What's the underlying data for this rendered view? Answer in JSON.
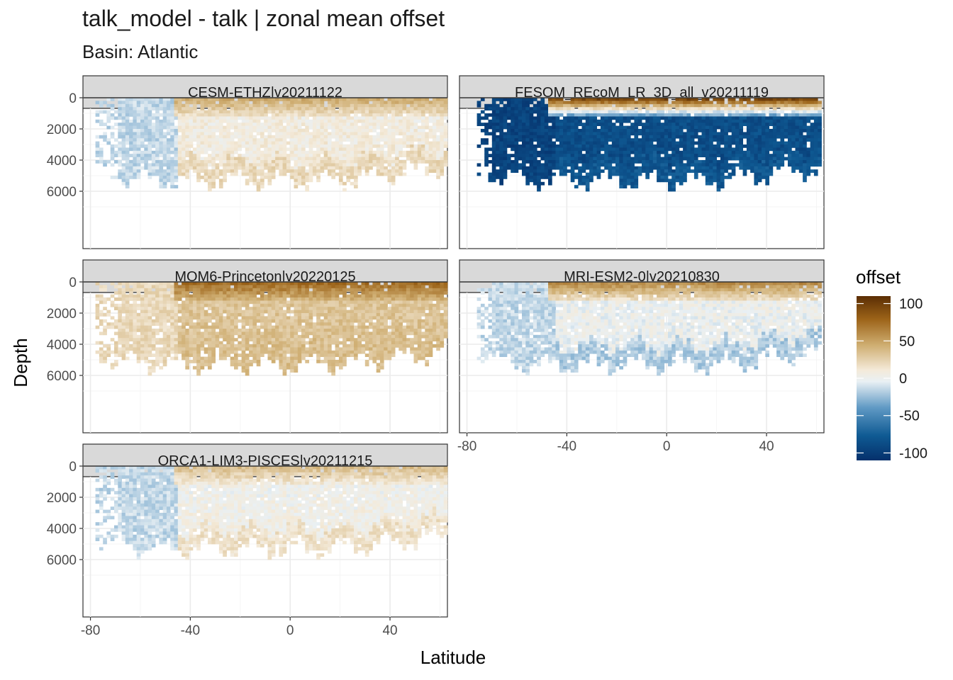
{
  "title": "talk_model - talk  | zonal mean offset",
  "subtitle": "Basin: Atlantic",
  "chart_data": {
    "type": "heatmap",
    "title": "talk_model - talk  | zonal mean offset",
    "subtitle": "Basin: Atlantic",
    "xlabel": "Latitude",
    "ylabel": "Depth",
    "x_ticks": [
      -80,
      -40,
      0,
      40
    ],
    "y_ticks": [
      0,
      2000,
      4000,
      6000
    ],
    "xlim": [
      -83,
      63
    ],
    "ylim": [
      7500,
      -1500
    ],
    "y_reversed": true,
    "grid": true,
    "legend": {
      "title": "offset",
      "position": "right",
      "ticks": [
        100,
        50,
        0,
        -50,
        -100
      ],
      "range": [
        -110,
        110
      ],
      "colors": [
        "#05306b",
        "#0f5a93",
        "#5f99c4",
        "#e9f0f4",
        "#f4ead9",
        "#cfae72",
        "#9c6318",
        "#5b2e04"
      ]
    },
    "panels": [
      {
        "label": "CESM-ETHZ|v20211122",
        "offset_description": "mixed",
        "surface_offset": 45,
        "deep_offset": 10,
        "south_offset": -15,
        "mid_offset": 5,
        "bottom_offset": 20
      },
      {
        "label": "FESOM_REcoM_LR_3D_all_v20211119",
        "surface_offset": 95,
        "deep_offset": -90,
        "south_offset": -95,
        "mid_offset": -85,
        "bottom_offset": -80
      },
      {
        "label": "MOM6-Princeton|v20220125",
        "surface_offset": 75,
        "deep_offset": 35,
        "south_offset": 20,
        "mid_offset": 30,
        "bottom_offset": 35
      },
      {
        "label": "MRI-ESM2-0|v20210830",
        "surface_offset": 60,
        "deep_offset": -5,
        "south_offset": -15,
        "mid_offset": 0,
        "bottom_offset": -20
      },
      {
        "label": "ORCA1-LIM3-PISCES|v20211215",
        "surface_offset": 35,
        "deep_offset": 5,
        "south_offset": -15,
        "mid_offset": 0,
        "bottom_offset": 15
      }
    ]
  }
}
